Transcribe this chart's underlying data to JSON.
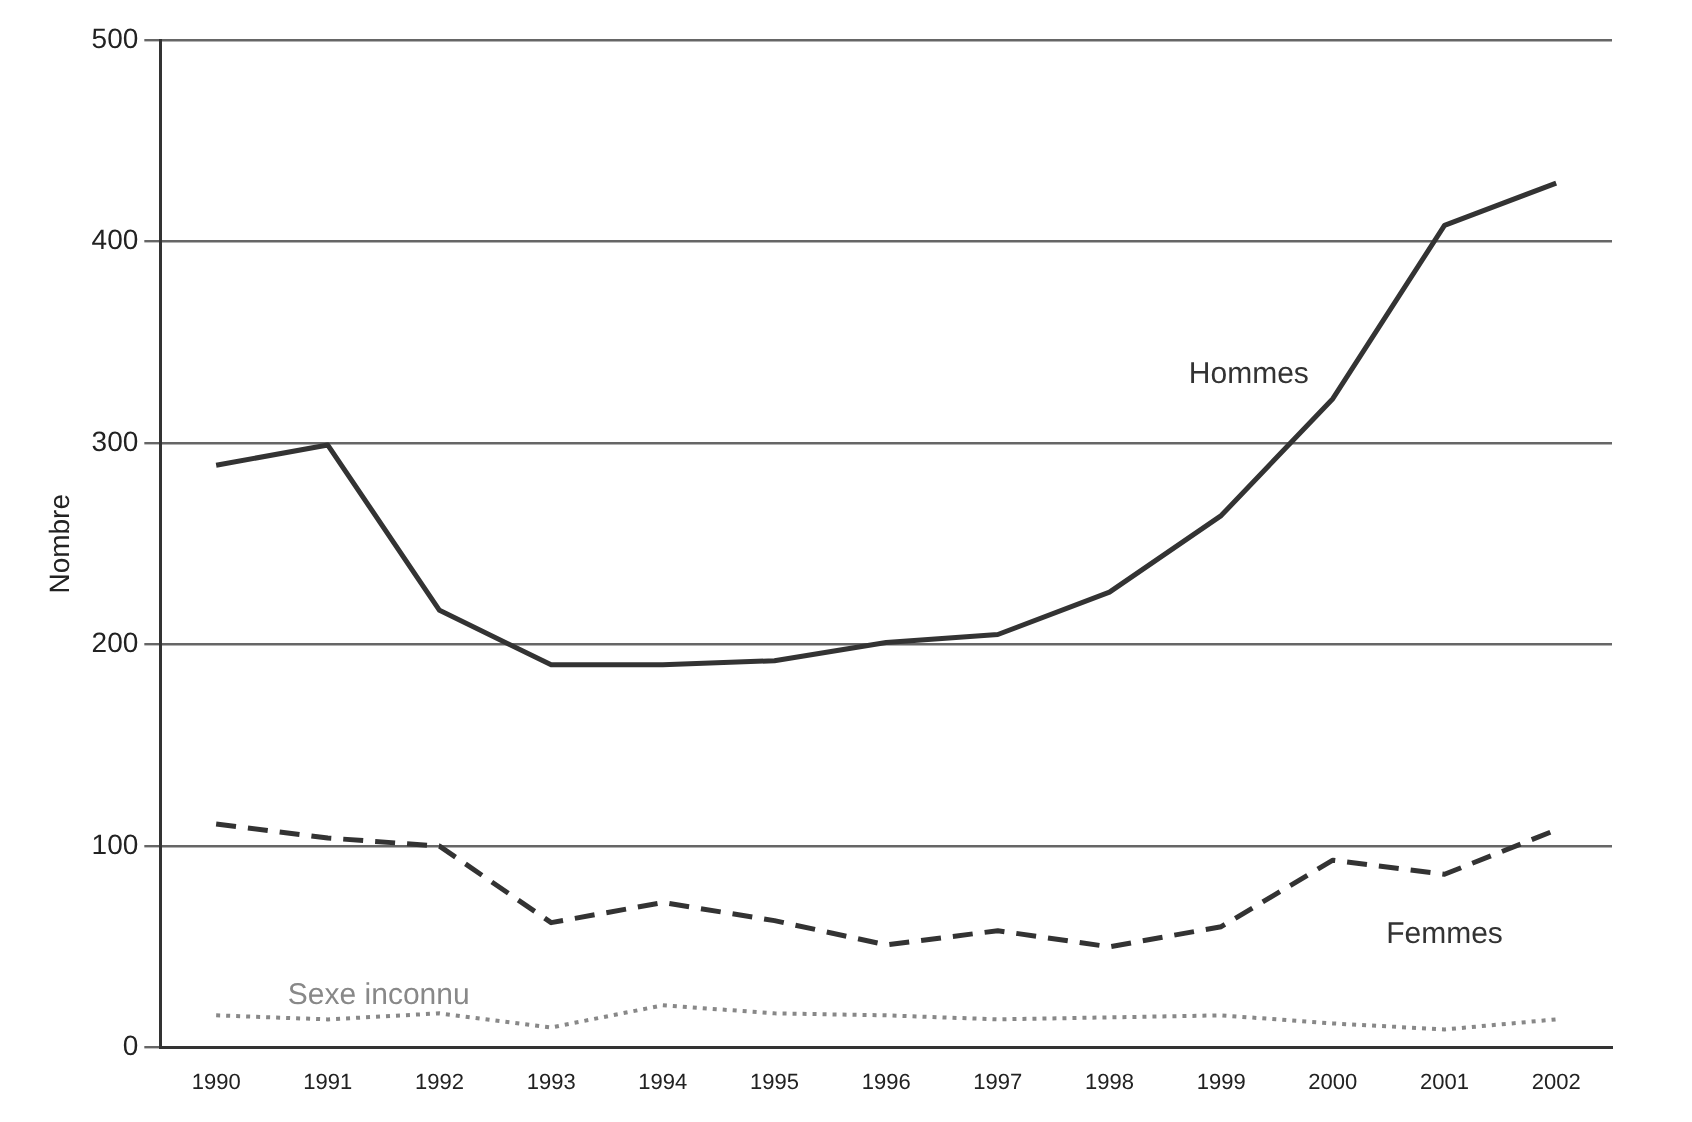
{
  "chart_data": {
    "type": "line",
    "ylabel": "Nombre",
    "categories": [
      "1990",
      "1991",
      "1992",
      "1993",
      "1994",
      "1995",
      "1996",
      "1997",
      "1998",
      "1999",
      "2000",
      "2001",
      "2002"
    ],
    "series": [
      {
        "name": "Hommes",
        "color": "#333333",
        "line_style": "solid",
        "values": [
          289,
          299,
          217,
          190,
          190,
          192,
          201,
          205,
          226,
          264,
          322,
          408,
          429
        ]
      },
      {
        "name": "Femmes",
        "color": "#333333",
        "line_style": "dashed",
        "values": [
          111,
          104,
          100,
          62,
          72,
          63,
          51,
          58,
          50,
          60,
          93,
          86,
          108
        ]
      },
      {
        "name": "Sexe inconnu",
        "color": "#888888",
        "line_style": "dotted",
        "values": [
          16,
          14,
          17,
          10,
          21,
          17,
          16,
          14,
          15,
          16,
          12,
          9,
          14
        ]
      }
    ],
    "ylim": [
      0,
      500
    ],
    "yticks": [
      0,
      100,
      200,
      300,
      400,
      500
    ],
    "grid": "y",
    "legend": false,
    "marker": "none"
  }
}
